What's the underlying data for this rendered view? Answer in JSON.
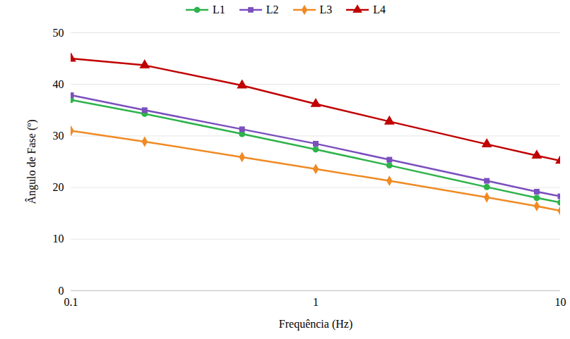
{
  "chart_data": {
    "type": "line",
    "x_label": "Frequência (Hz)",
    "y_label": "Ângulo de Fase (º)",
    "x": [
      0.1,
      0.2,
      0.5,
      1,
      2,
      5,
      8,
      10
    ],
    "series": [
      {
        "name": "L1",
        "color": "#2db34a",
        "marker": "circle",
        "values": [
          37,
          34.3,
          30.4,
          27.4,
          24.3,
          20.1,
          18,
          17.1
        ]
      },
      {
        "name": "L2",
        "color": "#7b4fbe",
        "marker": "square",
        "values": [
          37.9,
          35,
          31.3,
          28.5,
          25.4,
          21.3,
          19.2,
          18.3
        ]
      },
      {
        "name": "L3",
        "color": "#f08a24",
        "marker": "diamond",
        "values": [
          31,
          28.9,
          25.9,
          23.6,
          21.3,
          18.1,
          16.4,
          15.5
        ]
      },
      {
        "name": "L4",
        "color": "#c00000",
        "marker": "triangle",
        "values": [
          45,
          43.7,
          39.8,
          36.2,
          32.8,
          28.4,
          26.2,
          25.2
        ]
      }
    ],
    "xlim": [
      0.1,
      10
    ],
    "xticks": [
      0.1,
      1,
      10
    ],
    "ylim": [
      0,
      50
    ],
    "yticks": [
      0,
      10,
      20,
      30,
      40,
      50
    ],
    "log": "x",
    "grid": true,
    "legend": "top"
  }
}
